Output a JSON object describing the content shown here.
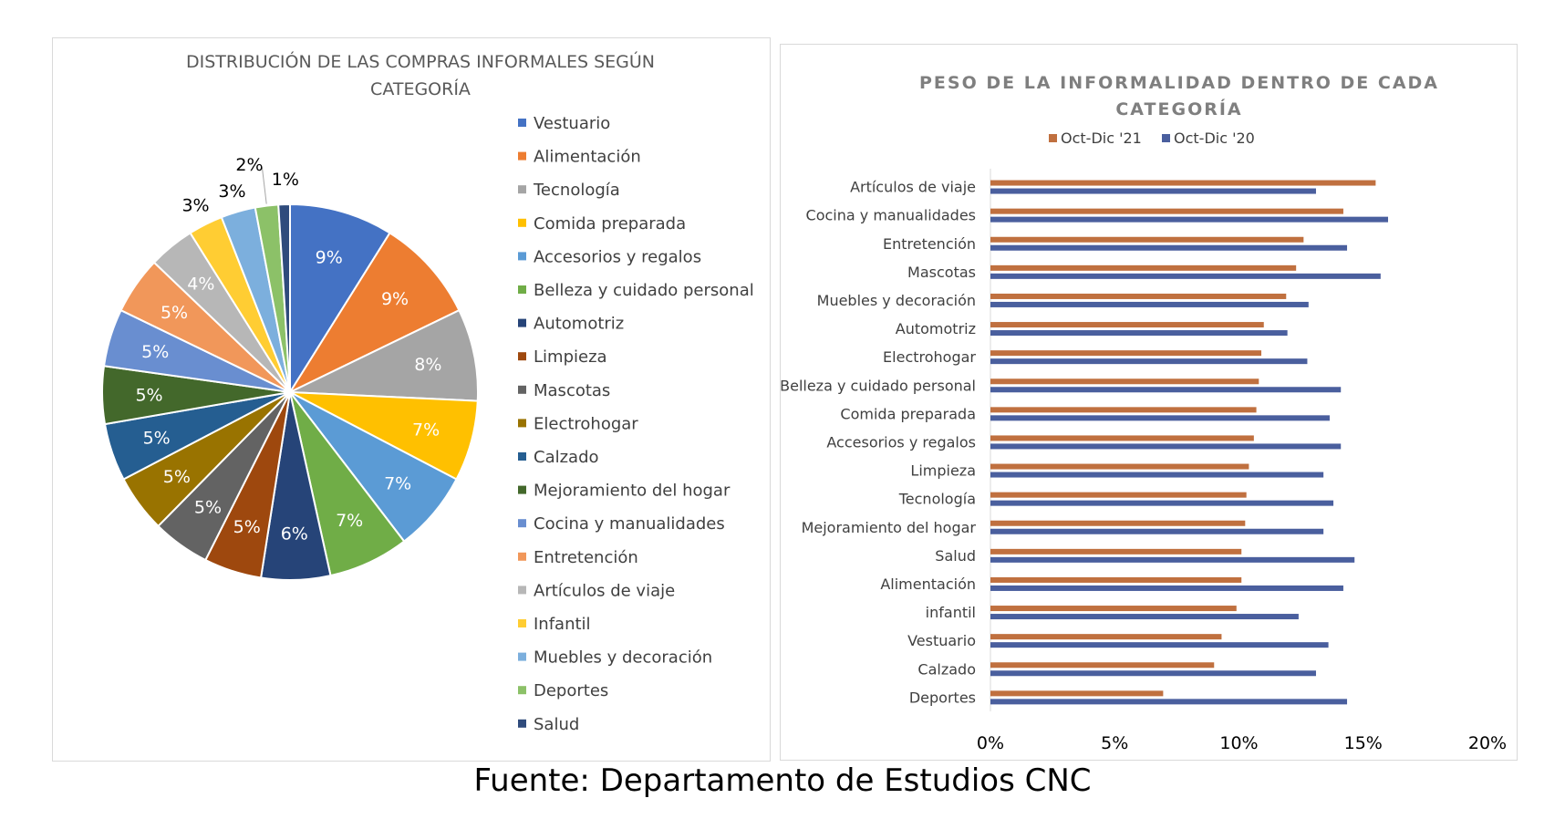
{
  "source_note": "Fuente: Departamento de Estudios CNC",
  "chart_data": [
    {
      "type": "pie",
      "title_lines": [
        "DISTRIBUCIÓN DE LAS COMPRAS INFORMALES SEGÚN",
        "CATEGORÍA"
      ],
      "legend_position": "right",
      "slices": [
        {
          "label": "Vestuario",
          "value": 9,
          "display": "9%",
          "color": "#4472C4"
        },
        {
          "label": "Alimentación",
          "value": 9,
          "display": "9%",
          "color": "#ED7D31"
        },
        {
          "label": "Tecnología",
          "value": 8,
          "display": "8%",
          "color": "#A5A5A5"
        },
        {
          "label": "Comida preparada",
          "value": 7,
          "display": "7%",
          "color": "#FFC000"
        },
        {
          "label": "Accesorios y regalos",
          "value": 7,
          "display": "7%",
          "color": "#5B9BD5"
        },
        {
          "label": "Belleza y cuidado personal",
          "value": 7,
          "display": "7%",
          "color": "#70AD47"
        },
        {
          "label": "Automotriz",
          "value": 6,
          "display": "6%",
          "color": "#264478"
        },
        {
          "label": "Limpieza",
          "value": 5,
          "display": "5%",
          "color": "#9E480E"
        },
        {
          "label": "Mascotas",
          "value": 5,
          "display": "5%",
          "color": "#636363"
        },
        {
          "label": "Electrohogar",
          "value": 5,
          "display": "5%",
          "color": "#997300"
        },
        {
          "label": "Calzado",
          "value": 5,
          "display": "5%",
          "color": "#255E91"
        },
        {
          "label": "Mejoramiento del hogar",
          "value": 5,
          "display": "5%",
          "color": "#43682B"
        },
        {
          "label": "Cocina y manualidades",
          "value": 5,
          "display": "5%",
          "color": "#698ED0"
        },
        {
          "label": "Entretención",
          "value": 5,
          "display": "5%",
          "color": "#F1975A"
        },
        {
          "label": "Artículos de viaje",
          "value": 4,
          "display": "4%",
          "color": "#B7B7B7"
        },
        {
          "label": "Infantil",
          "value": 3,
          "display": "3%",
          "color": "#FFCD33"
        },
        {
          "label": "Muebles y decoración",
          "value": 3,
          "display": "3%",
          "color": "#7CAFDD"
        },
        {
          "label": "Deportes",
          "value": 2,
          "display": "2%",
          "color": "#8CC168"
        },
        {
          "label": "Salud",
          "value": 1,
          "display": "1%",
          "color": "#2F4B7C"
        }
      ]
    },
    {
      "type": "bar",
      "orientation": "horizontal",
      "title_lines": [
        "PESO DE LA INFORMALIDAD DENTRO DE CADA",
        "CATEGORÍA"
      ],
      "legend_position": "top",
      "grid": false,
      "x_range": [
        0,
        20
      ],
      "x_ticks": [
        "0%",
        "5%",
        "10%",
        "15%",
        "20%"
      ],
      "categories": [
        "Artículos de viaje",
        "Cocina y manualidades",
        "Entretención",
        "Mascotas",
        "Muebles y decoración",
        "Automotriz",
        "Electrohogar",
        "Belleza y cuidado personal",
        "Comida preparada",
        "Accesorios y regalos",
        "Limpieza",
        "Tecnología",
        "Mejoramiento del hogar",
        "Salud",
        "Alimentación",
        "infantil",
        "Vestuario",
        "Calzado",
        "Deportes"
      ],
      "series": [
        {
          "name": "Oct-Dic '21",
          "color": "#C0703F",
          "values": [
            15.5,
            14.2,
            12.6,
            12.3,
            11.9,
            11.0,
            10.9,
            10.8,
            10.7,
            10.6,
            10.4,
            10.3,
            10.25,
            10.1,
            10.1,
            9.9,
            9.3,
            9.0,
            6.95
          ]
        },
        {
          "name": "Oct-Dic '20",
          "color": "#4A5F9E",
          "values": [
            13.1,
            16.0,
            14.35,
            15.7,
            12.8,
            11.95,
            12.75,
            14.1,
            13.65,
            14.1,
            13.4,
            13.8,
            13.4,
            14.65,
            14.2,
            12.4,
            13.6,
            13.1,
            14.35
          ]
        }
      ]
    }
  ]
}
